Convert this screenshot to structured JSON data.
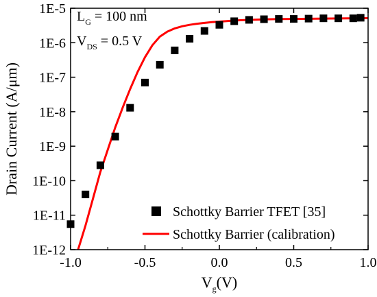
{
  "chart_data": {
    "type": "scatter",
    "xlabel": "V",
    "xlabel_sub": "g",
    "xlabel_unit": "(V)",
    "ylabel": "Drain Current (A/μm)",
    "xlim": [
      -1.0,
      1.0
    ],
    "ylim": [
      1e-12,
      1e-05
    ],
    "yscale": "log",
    "x_ticks": [
      -1.0,
      -0.5,
      0.0,
      0.5,
      1.0
    ],
    "x_tick_labels": [
      "-1.0",
      "-0.5",
      "0.0",
      "0.5",
      "1.0"
    ],
    "y_ticks": [
      1e-12,
      1e-11,
      1e-10,
      1e-09,
      1e-08,
      1e-07,
      1e-06,
      1e-05
    ],
    "y_tick_labels": [
      "1E-12",
      "1E-11",
      "1E-10",
      "1E-9",
      "1E-8",
      "1E-7",
      "1E-6",
      "1E-5"
    ],
    "annotations": {
      "lg_main": "L",
      "lg_sub": "G",
      "lg_value": " = 100 nm",
      "vds_main": "V",
      "vds_sub": "DS",
      "vds_value": " = 0.5 V"
    },
    "legend_position": "bottom-right",
    "series": [
      {
        "name": "Schottky Barrier TFET [35]",
        "kind": "markers",
        "color": "#000000",
        "x": [
          -1.0,
          -0.9,
          -0.8,
          -0.7,
          -0.6,
          -0.5,
          -0.4,
          -0.3,
          -0.2,
          -0.1,
          0.0,
          0.1,
          0.2,
          0.3,
          0.4,
          0.5,
          0.6,
          0.7,
          0.8,
          0.9,
          0.95
        ],
        "y": [
          5.5e-12,
          4e-11,
          2.8e-10,
          1.9e-09,
          1.3e-08,
          7e-08,
          2.3e-07,
          6e-07,
          1.3e-06,
          2.2e-06,
          3.3e-06,
          4.2e-06,
          4.6e-06,
          4.8e-06,
          4.9e-06,
          4.9e-06,
          5e-06,
          5.1e-06,
          5.1e-06,
          5.1e-06,
          5.3e-06
        ]
      },
      {
        "name": "Schottky Barrier (calibration)",
        "kind": "line",
        "color": "#ff0000",
        "x": [
          -0.95,
          -0.9,
          -0.85,
          -0.8,
          -0.75,
          -0.7,
          -0.65,
          -0.6,
          -0.55,
          -0.5,
          -0.45,
          -0.4,
          -0.35,
          -0.3,
          -0.25,
          -0.2,
          -0.15,
          -0.1,
          -0.05,
          0.0,
          0.05,
          0.1,
          0.2,
          0.3,
          0.4,
          0.5,
          0.6,
          0.7,
          0.8,
          0.9,
          1.0
        ],
        "y": [
          1e-12,
          5e-12,
          3e-11,
          1.8e-10,
          8e-10,
          3.5e-09,
          1.3e-08,
          4.5e-08,
          1.4e-07,
          3.8e-07,
          8.5e-07,
          1.5e-06,
          2.1e-06,
          2.6e-06,
          3e-06,
          3.3e-06,
          3.55e-06,
          3.75e-06,
          3.95e-06,
          4.1e-06,
          4.25e-06,
          4.4e-06,
          4.6e-06,
          4.75e-06,
          4.85e-06,
          4.9e-06,
          4.95e-06,
          5e-06,
          5.05e-06,
          5.1e-06,
          5.15e-06
        ]
      }
    ]
  }
}
